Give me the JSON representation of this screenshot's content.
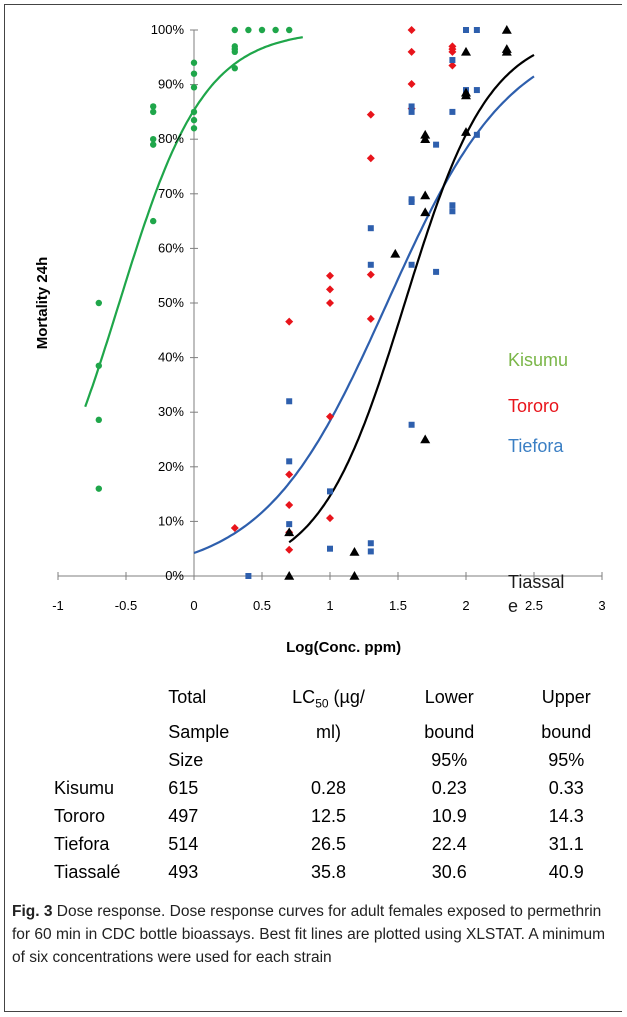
{
  "chart_data": {
    "type": "scatter",
    "xlabel": "Log(Conc. ppm)",
    "ylabel": "Mortality  24h",
    "xlim": [
      -1,
      3
    ],
    "ylim": [
      0,
      100
    ],
    "x_ticks": [
      "-1",
      "-0.5",
      "0",
      "0.5",
      "1",
      "1.5",
      "2",
      "2.5",
      "3"
    ],
    "y_ticks": [
      "0%",
      "10%",
      "20%",
      "30%",
      "40%",
      "50%",
      "60%",
      "70%",
      "80%",
      "90%",
      "100%"
    ],
    "grid": false,
    "legend_position": "right",
    "series": [
      {
        "name": "Kisumu",
        "color": "#1fa64a",
        "marker": "circle",
        "points": [
          [
            -0.7,
            50
          ],
          [
            -0.7,
            38.5
          ],
          [
            -0.7,
            28.6
          ],
          [
            -0.7,
            16
          ],
          [
            -0.3,
            86
          ],
          [
            -0.3,
            85
          ],
          [
            -0.3,
            80
          ],
          [
            -0.3,
            79
          ],
          [
            -0.3,
            65
          ],
          [
            0,
            94
          ],
          [
            0,
            92
          ],
          [
            0,
            89.5
          ],
          [
            0,
            85
          ],
          [
            0,
            83.5
          ],
          [
            0,
            82
          ],
          [
            0.3,
            100
          ],
          [
            0.3,
            97
          ],
          [
            0.3,
            96.5
          ],
          [
            0.3,
            96
          ],
          [
            0.3,
            93
          ],
          [
            0.4,
            100
          ],
          [
            0.5,
            100
          ],
          [
            0.6,
            100
          ],
          [
            0.7,
            100
          ]
        ],
        "curve": {
          "x_start": -0.8,
          "x_end": 0.8,
          "x50": -0.55,
          "slope": 3.2
        }
      },
      {
        "name": "Tororo",
        "color": "#e8141b",
        "marker": "diamond",
        "points": [
          [
            0.3,
            8.8
          ],
          [
            0.7,
            46.6
          ],
          [
            0.7,
            18.6
          ],
          [
            0.7,
            13
          ],
          [
            0.7,
            8
          ],
          [
            0.7,
            4.8
          ],
          [
            1,
            55
          ],
          [
            1,
            52.5
          ],
          [
            1,
            50
          ],
          [
            1,
            29.2
          ],
          [
            1,
            10.6
          ],
          [
            1.3,
            84.5
          ],
          [
            1.3,
            76.5
          ],
          [
            1.3,
            55.2
          ],
          [
            1.3,
            47.1
          ],
          [
            1.6,
            100
          ],
          [
            1.6,
            96
          ],
          [
            1.6,
            90.1
          ],
          [
            1.6,
            85.6
          ],
          [
            1.9,
            97
          ],
          [
            1.9,
            96.5
          ],
          [
            1.9,
            96
          ],
          [
            1.9,
            93.5
          ]
        ]
      },
      {
        "name": "Tiefora",
        "color": "#2e5fad",
        "marker": "square",
        "points": [
          [
            0.4,
            0
          ],
          [
            0.7,
            32
          ],
          [
            0.7,
            21
          ],
          [
            0.7,
            9.5
          ],
          [
            1,
            15.5
          ],
          [
            1,
            5
          ],
          [
            1.3,
            63.7
          ],
          [
            1.3,
            57
          ],
          [
            1.3,
            6
          ],
          [
            1.3,
            4.5
          ],
          [
            1.6,
            86
          ],
          [
            1.6,
            85
          ],
          [
            1.6,
            69
          ],
          [
            1.6,
            68.5
          ],
          [
            1.6,
            57
          ],
          [
            1.6,
            27.7
          ],
          [
            1.78,
            79
          ],
          [
            1.78,
            55.7
          ],
          [
            1.9,
            94.5
          ],
          [
            1.9,
            85
          ],
          [
            1.9,
            67.9
          ],
          [
            1.9,
            66.8
          ],
          [
            2,
            100
          ],
          [
            2,
            89
          ],
          [
            2.08,
            100
          ],
          [
            2.08,
            89
          ],
          [
            2.08,
            80.8
          ]
        ],
        "curve": {
          "x_start": 0,
          "x_end": 2.5,
          "x50": 1.42,
          "slope": 2.2
        }
      },
      {
        "name": "Tiassale",
        "color": "#000000",
        "marker": "triangle",
        "points": [
          [
            0.7,
            8
          ],
          [
            0.7,
            0
          ],
          [
            1.18,
            4.4
          ],
          [
            1.18,
            0
          ],
          [
            1.48,
            59
          ],
          [
            1.7,
            80.8
          ],
          [
            1.7,
            80
          ],
          [
            1.7,
            69.7
          ],
          [
            1.7,
            66.6
          ],
          [
            1.7,
            25
          ],
          [
            2,
            96
          ],
          [
            2,
            88.5
          ],
          [
            2,
            88
          ],
          [
            2,
            81.3
          ],
          [
            2.3,
            100
          ],
          [
            2.3,
            96.5
          ],
          [
            2.3,
            96
          ]
        ],
        "curve": {
          "x_start": 0.7,
          "x_end": 2.5,
          "x50": 1.55,
          "slope": 3.2
        }
      }
    ],
    "legend_display": [
      {
        "text": "Kisumu",
        "color": "#7ab648"
      },
      {
        "text": "Tororo",
        "color": "#e8141b"
      },
      {
        "text": "Tiefora",
        "color": "#3b7fc4"
      },
      {
        "text": "Tiassal",
        "color": "#1a1a1a"
      },
      {
        "text": "e",
        "color": "#1a1a1a"
      }
    ]
  },
  "table": {
    "header_rows": [
      [
        "",
        "Total",
        "LC50 (µg/",
        "Lower",
        "Upper"
      ],
      [
        "",
        "Sample",
        "ml)",
        "bound",
        "bound"
      ],
      [
        "",
        "Size",
        "",
        "95%",
        "95%"
      ]
    ],
    "rows": [
      [
        "Kisumu",
        "615",
        "0.28",
        "0.23",
        "0.33"
      ],
      [
        "Tororo",
        "497",
        "12.5",
        "10.9",
        "14.3"
      ],
      [
        "Tiefora",
        "514",
        "26.5",
        "22.4",
        "31.1"
      ],
      [
        "Tiassalé",
        "493",
        "35.8",
        "30.6",
        "40.9"
      ]
    ]
  },
  "caption": {
    "label": "Fig. 3",
    "text": "Dose response. Dose response curves for adult females exposed to permethrin for 60 min in CDC bottle bioassays. Best fit lines are plotted using XLSTAT. A minimum of six concentrations were used for each strain"
  }
}
